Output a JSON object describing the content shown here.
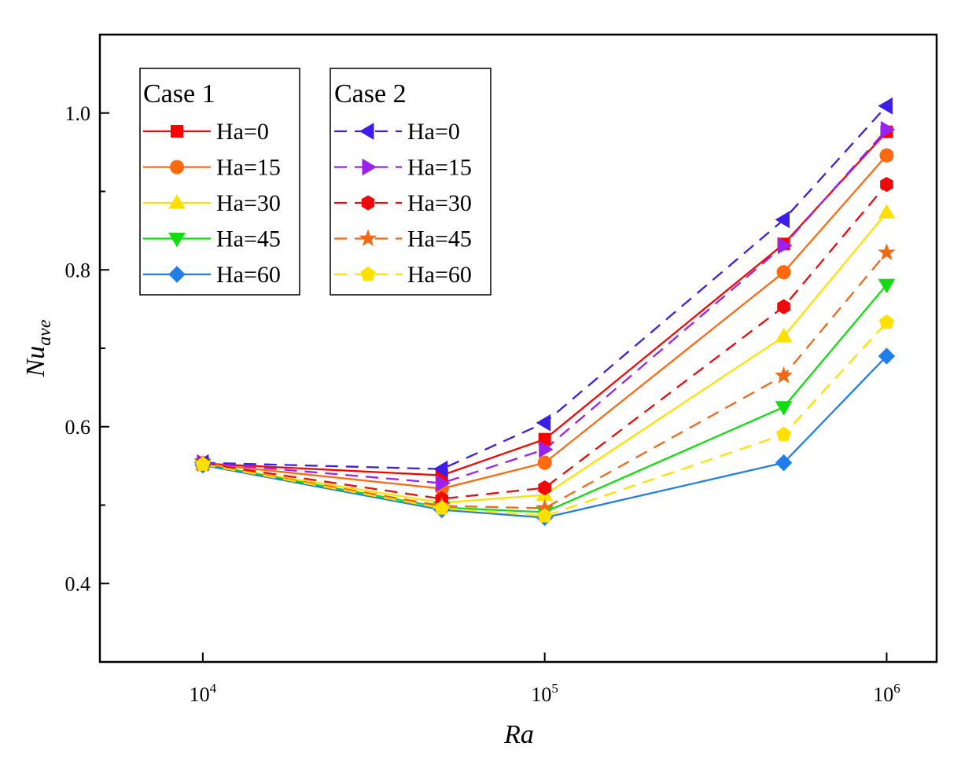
{
  "chart_data": {
    "type": "line",
    "xlabel": "Ra",
    "ylabel": {
      "main": "Nu",
      "sub": "ave"
    },
    "x_scale": "log",
    "xlim": [
      5000,
      1400000
    ],
    "ylim": [
      0.3,
      1.1
    ],
    "x": [
      10000,
      50000,
      100000,
      500000,
      1000000
    ],
    "x_ticks": [
      {
        "value": 10000,
        "base": "10",
        "exp": "4"
      },
      {
        "value": 100000,
        "base": "10",
        "exp": "5"
      },
      {
        "value": 1000000,
        "base": "10",
        "exp": "6"
      }
    ],
    "y_ticks": [
      {
        "value": 0.4,
        "label": "0.4"
      },
      {
        "value": 0.6,
        "label": "0.6"
      },
      {
        "value": 0.8,
        "label": "0.8"
      },
      {
        "value": 1.0,
        "label": "1.0"
      }
    ],
    "grid": false,
    "legend_placement": "top-left",
    "legend_groups": [
      {
        "title": "Case 1",
        "series": [
          {
            "name": "Ha=0",
            "color": "#ff0000",
            "marker": "square",
            "dash": "solid",
            "values": [
              0.553,
              0.538,
              0.584,
              0.833,
              0.976
            ]
          },
          {
            "name": "Ha=15",
            "color": "#ff6a10",
            "marker": "circle",
            "dash": "solid",
            "values": [
              0.553,
              0.521,
              0.554,
              0.797,
              0.946
            ]
          },
          {
            "name": "Ha=30",
            "color": "#ffe000",
            "marker": "triangle-up",
            "dash": "solid",
            "values": [
              0.552,
              0.503,
              0.513,
              0.715,
              0.873
            ]
          },
          {
            "name": "Ha=45",
            "color": "#11dd11",
            "marker": "triangle-down",
            "dash": "solid",
            "values": [
              0.552,
              0.497,
              0.491,
              0.625,
              0.781
            ]
          },
          {
            "name": "Ha=60",
            "color": "#1f7ee8",
            "marker": "diamond",
            "dash": "solid",
            "values": [
              0.551,
              0.494,
              0.484,
              0.554,
              0.69
            ]
          }
        ]
      },
      {
        "title": "Case 2",
        "series": [
          {
            "name": "Ha=0",
            "color": "#3b1ee8",
            "marker": "triangle-left",
            "dash": "dashed",
            "values": [
              0.554,
              0.546,
              0.605,
              0.864,
              1.009
            ]
          },
          {
            "name": "Ha=15",
            "color": "#9b22ee",
            "marker": "triangle-right",
            "dash": "dashed",
            "values": [
              0.554,
              0.528,
              0.571,
              0.831,
              0.979
            ]
          },
          {
            "name": "Ha=30",
            "color": "#ee0a0a",
            "marker": "hexagon",
            "dash": "dashed",
            "values": [
              0.553,
              0.508,
              0.522,
              0.753,
              0.909
            ]
          },
          {
            "name": "Ha=45",
            "color": "#f06818",
            "marker": "star",
            "dash": "dashed",
            "values": [
              0.552,
              0.499,
              0.496,
              0.665,
              0.822
            ]
          },
          {
            "name": "Ha=60",
            "color": "#ffe000",
            "marker": "pentagon",
            "dash": "dashed",
            "values": [
              0.552,
              0.496,
              0.486,
              0.59,
              0.733
            ]
          }
        ]
      }
    ]
  }
}
